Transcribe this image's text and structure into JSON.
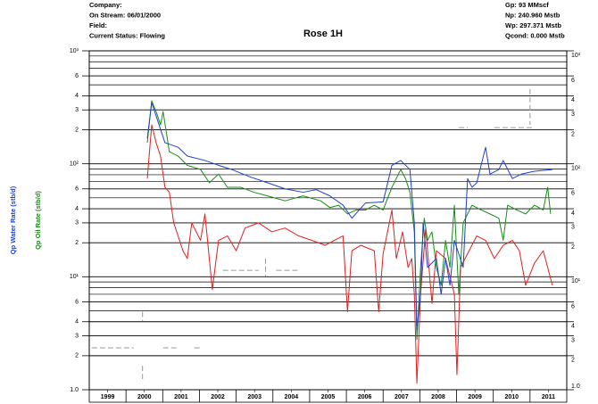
{
  "chart_data": {
    "type": "line",
    "title": "Rose 1H",
    "header_left": [
      "Company:",
      "On Stream: 06/01/2000",
      "Field:",
      "Current Status: Flowing"
    ],
    "header_right": [
      "Gp: 93 MMscf",
      "Np: 240.960 Mstb",
      "Wp: 297.371 Mstb",
      "Qcond: 0.000 Mstb"
    ],
    "y_axis_labels": [
      {
        "text": "Qp Water Rate (stb/d)",
        "color": "#1f3fd0"
      },
      {
        "text": "Qp Oil Rate (stb/d)",
        "color": "#1a8a1a"
      }
    ],
    "y_scale": "log",
    "ylim": [
      1,
      1000
    ],
    "yticks": [
      {
        "value": 1,
        "label": "1.0"
      },
      2,
      3,
      4,
      6,
      {
        "value": 10,
        "label": "10¹"
      },
      {
        "value": 20,
        "label": "2"
      },
      {
        "value": 30,
        "label": "3"
      },
      {
        "value": 40,
        "label": "4"
      },
      {
        "value": 60,
        "label": "6"
      },
      {
        "value": 100,
        "label": "10²"
      },
      {
        "value": 200,
        "label": "2"
      },
      {
        "value": 300,
        "label": "3"
      },
      {
        "value": 400,
        "label": "4"
      },
      {
        "value": 600,
        "label": "6"
      },
      {
        "value": 1000,
        "label": "10³"
      }
    ],
    "minor_grid": [
      5,
      7,
      8,
      9,
      50,
      70,
      80,
      90,
      500,
      700,
      800,
      900
    ],
    "grid": true,
    "xlim": [
      1999,
      2012
    ],
    "xticks": [
      {
        "value": 1999.5,
        "label": "1999"
      },
      {
        "value": 2000.5,
        "label": "2000"
      },
      {
        "value": 2001.5,
        "label": "2001"
      },
      {
        "value": 2002.5,
        "label": "2002"
      },
      {
        "value": 2003.5,
        "label": "2003"
      },
      {
        "value": 2004.5,
        "label": "2004"
      },
      {
        "value": 2005.5,
        "label": "2005"
      },
      {
        "value": 2006.5,
        "label": "2006"
      },
      {
        "value": 2007.5,
        "label": "2007"
      },
      {
        "value": 2008.5,
        "label": "2008"
      },
      {
        "value": 2009.5,
        "label": "2009"
      },
      {
        "value": 2010.5,
        "label": "2010"
      },
      {
        "value": 2011.5,
        "label": "2011"
      }
    ],
    "series": [
      {
        "color": "#999999",
        "dashed": true,
        "x": [
          1999.07,
          2000.21,
          null,
          2001.01,
          2001.42,
          null,
          2001.86,
          2002.01,
          null,
          2002.64,
          2003.61,
          null,
          2004.09,
          2004.7,
          null,
          2009.06,
          2009.3,
          null,
          2010.03,
          2011.07,
          null,
          2000.45,
          2000.45,
          null,
          2000.45,
          2000.45,
          null,
          2003.8,
          2003.8,
          null,
          2011.0,
          2011.0
        ],
        "values": [
          2.35,
          2.35,
          null,
          2.35,
          2.35,
          null,
          2.35,
          2.35,
          null,
          11.4,
          11.4,
          null,
          11.4,
          11.4,
          null,
          209,
          209,
          null,
          209,
          209,
          null,
          4.9,
          4.05,
          null,
          1.63,
          1.24,
          null,
          14.5,
          10.1,
          null,
          460,
          221
        ]
      },
      {
        "color": "#e02020",
        "x": [
          2000.58,
          2000.7,
          2000.82,
          2000.94,
          2001.06,
          2001.18,
          2001.3,
          2001.55,
          2001.67,
          2001.79,
          2002.03,
          2002.15,
          2002.35,
          2002.52,
          2002.76,
          2003.0,
          2003.24,
          2003.61,
          2003.97,
          2004.33,
          2004.7,
          2005.06,
          2005.42,
          2005.67,
          2005.91,
          2006.03,
          2006.15,
          2006.39,
          2006.76,
          2006.88,
          2007.0,
          2007.24,
          2007.36,
          2007.53,
          2007.68,
          2007.78,
          2007.85,
          2007.92,
          2008.02,
          2008.16,
          2008.33,
          2008.45,
          2008.7,
          2008.94,
          2009.01,
          2009.11,
          2009.3,
          2009.55,
          2009.79,
          2010.03,
          2010.27,
          2010.52,
          2010.71,
          2010.88,
          2011.12,
          2011.36,
          2011.48,
          2011.61
        ],
        "values": [
          74,
          221,
          154,
          117,
          62,
          56,
          30,
          17,
          14.5,
          30,
          21,
          36,
          7.7,
          21,
          23,
          17,
          27,
          30,
          25,
          27,
          23,
          21,
          19,
          21,
          23,
          4.9,
          17,
          19,
          17,
          4.9,
          16,
          39,
          14.5,
          25,
          12.1,
          14.5,
          7.0,
          1.14,
          7.0,
          27,
          5.8,
          17,
          14.5,
          7.0,
          1.36,
          12.1,
          16,
          23,
          21,
          14.5,
          19,
          21,
          17,
          8.4,
          13.2,
          17,
          12.1,
          8.4
        ]
      },
      {
        "color": "#1a8a1a",
        "x": [
          2000.58,
          2000.7,
          2000.82,
          2000.94,
          2001.01,
          2001.18,
          2001.42,
          2001.67,
          2002.03,
          2002.27,
          2002.52,
          2002.76,
          2003.12,
          2003.48,
          2003.85,
          2004.33,
          2004.82,
          2005.3,
          2005.55,
          2005.79,
          2006.03,
          2006.27,
          2006.52,
          2006.76,
          2007.0,
          2007.24,
          2007.48,
          2007.61,
          2007.73,
          2007.85,
          2007.92,
          2008.02,
          2008.12,
          2008.21,
          2008.33,
          2008.45,
          2008.58,
          2008.7,
          2008.82,
          2008.94,
          2009.06,
          2009.18,
          2009.42,
          2009.67,
          2009.91,
          2010.15,
          2010.27,
          2010.39,
          2010.64,
          2010.88,
          2011.12,
          2011.36,
          2011.48,
          2011.56
        ],
        "values": [
          154,
          361,
          290,
          221,
          290,
          128,
          117,
          97,
          89,
          68,
          81,
          62,
          62,
          56,
          52,
          47,
          52,
          47,
          41,
          43,
          36,
          39,
          39,
          43,
          39,
          62,
          89,
          74,
          56,
          25,
          2.8,
          12.1,
          33,
          21,
          25,
          12.1,
          8.4,
          21,
          12.1,
          43,
          7.0,
          30,
          43,
          39,
          36,
          33,
          21,
          43,
          39,
          36,
          43,
          39,
          62,
          36
        ]
      },
      {
        "color": "#1f3fd0",
        "x": [
          2000.58,
          2000.7,
          2001.06,
          2001.42,
          2001.67,
          2002.15,
          2002.52,
          2002.88,
          2003.36,
          2003.85,
          2004.33,
          2004.82,
          2005.18,
          2005.55,
          2005.91,
          2006.15,
          2006.52,
          2007.0,
          2007.24,
          2007.48,
          2007.73,
          2007.85,
          2007.92,
          2008.02,
          2008.09,
          2008.21,
          2008.45,
          2008.58,
          2008.7,
          2008.82,
          2008.94,
          2009.18,
          2009.3,
          2009.42,
          2009.55,
          2009.79,
          2009.91,
          2010.15,
          2010.27,
          2010.52,
          2010.76,
          2011.12,
          2011.61
        ],
        "values": [
          168,
          348,
          154,
          140,
          117,
          107,
          97,
          89,
          77,
          68,
          60,
          56,
          59,
          52,
          43,
          33,
          45,
          46,
          97,
          107,
          89,
          30,
          3.4,
          7.0,
          30,
          12.1,
          14.5,
          7.0,
          14.5,
          8.4,
          21,
          12.1,
          74,
          62,
          68,
          140,
          81,
          89,
          107,
          74,
          81,
          86,
          89
        ]
      }
    ]
  }
}
